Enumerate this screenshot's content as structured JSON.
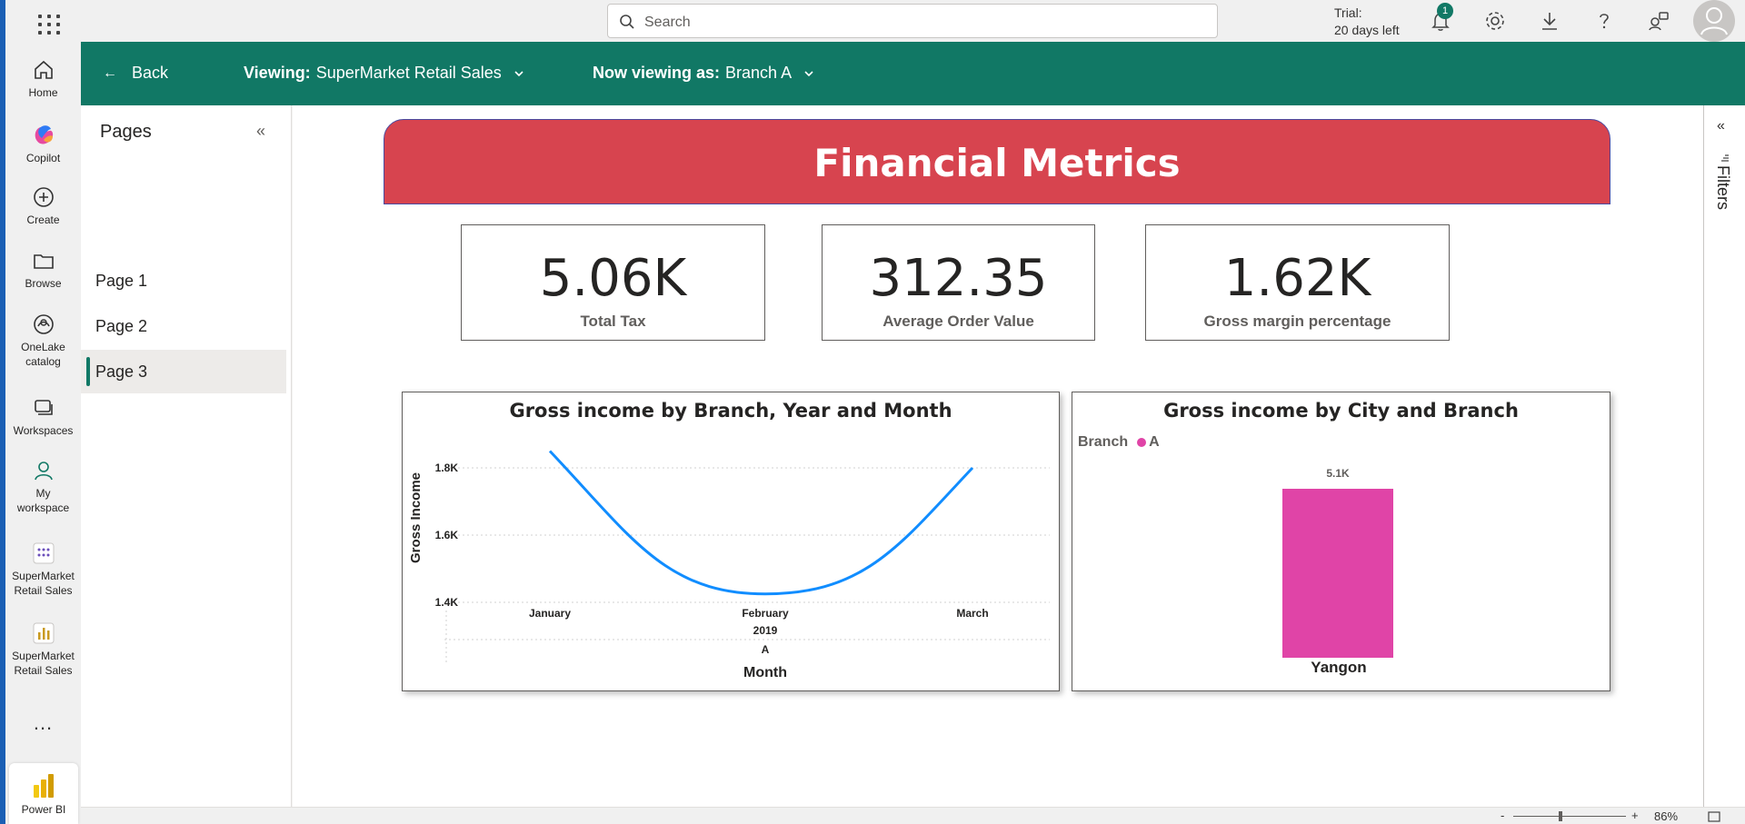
{
  "topbar": {
    "search_placeholder": "Search",
    "trial_line1": "Trial:",
    "trial_line2": "20 days left",
    "notification_count": "1"
  },
  "rail": {
    "items": [
      {
        "label": "Home",
        "icon": "home-icon"
      },
      {
        "label": "Copilot",
        "icon": "copilot-icon"
      },
      {
        "label": "Create",
        "icon": "create-icon"
      },
      {
        "label": "Browse",
        "icon": "browse-icon"
      },
      {
        "label": "OneLake catalog",
        "icon": "onelake-icon"
      },
      {
        "label": "Workspaces",
        "icon": "workspaces-icon"
      },
      {
        "label": "My workspace",
        "icon": "my-workspace-icon"
      },
      {
        "label": "SuperMarket Retail Sales",
        "icon": "semantic-model-icon"
      },
      {
        "label": "SuperMarket Retail Sales",
        "icon": "report-icon"
      }
    ],
    "more": "...",
    "product": "Power BI"
  },
  "navbar": {
    "back_label": "Back",
    "viewing_label": "Viewing:",
    "viewing_value": "SuperMarket Retail Sales",
    "as_label": "Now viewing as:",
    "as_value": "Branch A"
  },
  "pages": {
    "title": "Pages",
    "items": [
      "Page 1",
      "Page 2",
      "Page 3"
    ],
    "active_index": 2
  },
  "report": {
    "banner_title": "Financial Metrics",
    "banner_color": "#d7444f",
    "cards": [
      {
        "value": "5.06K",
        "label": "Total Tax"
      },
      {
        "value": "312.35",
        "label": "Average Order Value"
      },
      {
        "value": "1.62K",
        "label": "Gross margin percentage"
      }
    ]
  },
  "chart_data": [
    {
      "type": "line",
      "title": "Gross income by Branch, Year and Month",
      "xlabel": "Month",
      "ylabel": "Gross Income",
      "categories": [
        "January",
        "February",
        "March"
      ],
      "year_label": "2019",
      "branch_label": "A",
      "series": [
        {
          "name": "A",
          "values": [
            1850,
            1425,
            1800
          ],
          "color": "#118dff"
        }
      ],
      "ylim": [
        1400,
        1850
      ],
      "yticks": [
        {
          "value": 1800,
          "label": "1.8K"
        },
        {
          "value": 1600,
          "label": "1.6K"
        },
        {
          "value": 1400,
          "label": "1.4K"
        }
      ],
      "grid": true
    },
    {
      "type": "bar",
      "title": "Gross income by City and Branch",
      "legend_title": "Branch",
      "legend": [
        "A"
      ],
      "categories": [
        "Yangon"
      ],
      "series": [
        {
          "name": "A",
          "values": [
            5100
          ],
          "color": "#e044a7"
        }
      ],
      "data_labels": [
        "5.1K"
      ],
      "ylim": [
        0,
        5100
      ]
    }
  ],
  "statusbar": {
    "zoom_minus": "-",
    "zoom_plus": "+",
    "zoom_level": "86%",
    "zoom_fraction": 0.4
  },
  "filters": {
    "label": "Filters"
  }
}
